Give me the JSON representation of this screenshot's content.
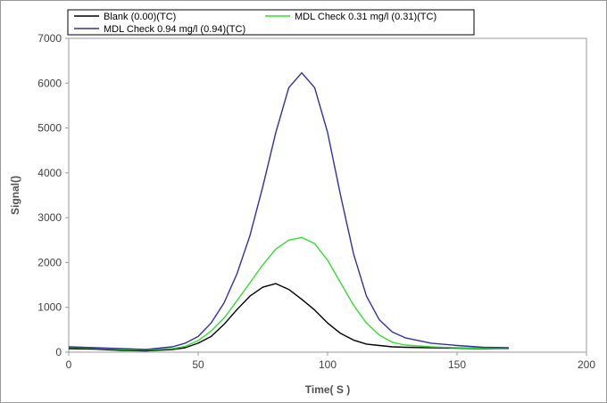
{
  "chart_data": {
    "type": "line",
    "xlabel": "Time( S )",
    "ylabel": "Signal()",
    "xlim": [
      0,
      200
    ],
    "ylim": [
      0,
      7000
    ],
    "x_ticks": [
      0,
      50,
      100,
      150,
      200
    ],
    "y_ticks": [
      0,
      1000,
      2000,
      3000,
      4000,
      5000,
      6000,
      7000
    ],
    "grid": false,
    "legend_position": "top",
    "series": [
      {
        "name": "Blank (0.00)(TC)",
        "color": "#000000",
        "x": [
          0,
          10,
          20,
          30,
          40,
          45,
          50,
          55,
          60,
          65,
          70,
          75,
          80,
          85,
          90,
          95,
          100,
          105,
          110,
          115,
          120,
          125,
          130,
          140,
          150,
          160,
          170
        ],
        "y": [
          80,
          70,
          40,
          30,
          60,
          100,
          200,
          350,
          620,
          950,
          1250,
          1450,
          1530,
          1400,
          1180,
          940,
          650,
          420,
          270,
          180,
          150,
          120,
          110,
          100,
          90,
          80,
          80
        ]
      },
      {
        "name": "MDL Check 0.31 mg/l (0.31)(TC)",
        "color": "#33dd33",
        "x": [
          0,
          10,
          20,
          30,
          40,
          45,
          50,
          55,
          60,
          65,
          70,
          75,
          80,
          85,
          90,
          95,
          100,
          105,
          110,
          115,
          120,
          125,
          130,
          140,
          150,
          160,
          170
        ],
        "y": [
          110,
          90,
          60,
          50,
          80,
          130,
          260,
          470,
          760,
          1150,
          1550,
          1950,
          2300,
          2500,
          2560,
          2420,
          2050,
          1550,
          1050,
          650,
          380,
          220,
          160,
          120,
          100,
          90,
          80
        ]
      },
      {
        "name": "MDL Check 0.94 mg/l (0.94)(TC)",
        "color": "#3030a0",
        "x": [
          0,
          10,
          20,
          30,
          40,
          45,
          50,
          55,
          60,
          65,
          70,
          75,
          80,
          85,
          90,
          95,
          100,
          105,
          110,
          115,
          120,
          125,
          130,
          140,
          150,
          160,
          170
        ],
        "y": [
          120,
          100,
          80,
          60,
          120,
          200,
          350,
          650,
          1100,
          1750,
          2600,
          3700,
          4900,
          5900,
          6230,
          5900,
          4900,
          3500,
          2200,
          1250,
          720,
          450,
          320,
          200,
          150,
          110,
          100
        ]
      }
    ]
  }
}
